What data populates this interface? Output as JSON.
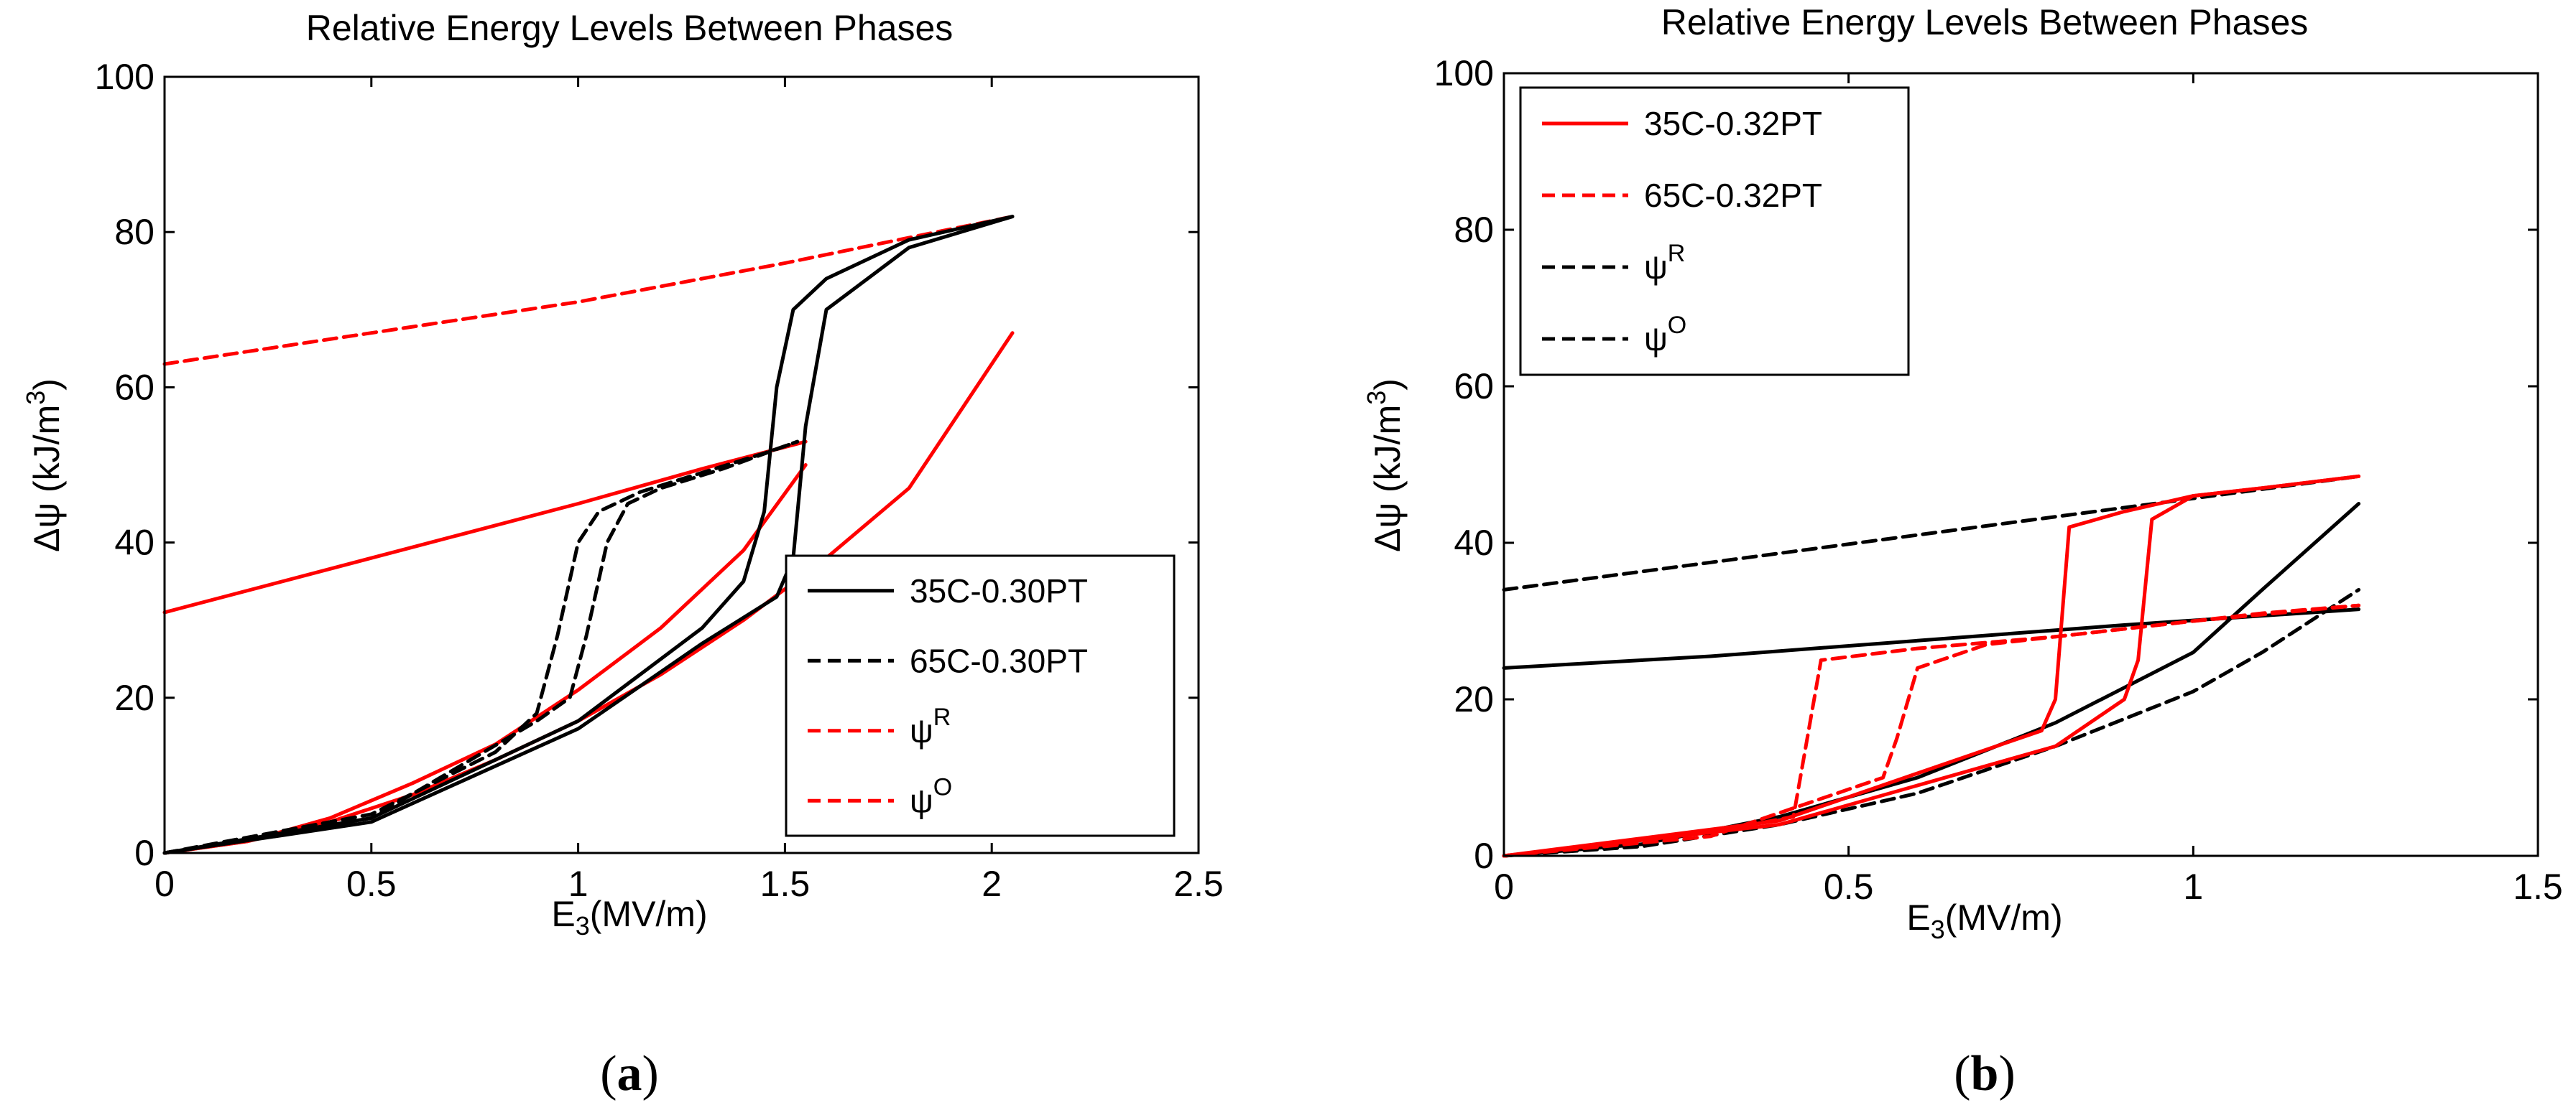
{
  "chart_data": [
    {
      "type": "line",
      "title": "Relative Energy Levels Between Phases",
      "xlabel_main": "E",
      "xlabel_sub": "3",
      "xlabel_rest": "(MV/m)",
      "ylabel_main": "Δψ  (kJ/m",
      "ylabel_sup": "3",
      "ylabel_end": ")",
      "xlim": [
        0,
        2.5
      ],
      "ylim": [
        0,
        100
      ],
      "xticks": [
        "0",
        "0.5",
        "1",
        "1.5",
        "2",
        "2.5"
      ],
      "yticks": [
        "0",
        "20",
        "40",
        "60",
        "80",
        "100"
      ],
      "caption_open": "(",
      "caption_letter": "a",
      "caption_close": ")",
      "legend_position": "bottom-right",
      "legend": [
        {
          "label": "35C-0.30PT",
          "color": "#000000",
          "dash": "solid"
        },
        {
          "label": "65C-0.30PT",
          "color": "#000000",
          "dash": "dashed"
        },
        {
          "label": "ψ",
          "sup": "R",
          "color": "#ff0000",
          "dash": "dashed"
        },
        {
          "label": "ψ",
          "sup": "O",
          "color": "#ff0000",
          "dash": "dashed"
        }
      ],
      "series": [
        {
          "color": "#ff0000",
          "dash": "dashed",
          "x": [
            0,
            0.5,
            1.0,
            1.5,
            2.05
          ],
          "y": [
            63,
            67,
            71,
            76,
            82
          ]
        },
        {
          "color": "#ff0000",
          "dash": "solid",
          "x": [
            0,
            0.5,
            1.0,
            1.3,
            1.55
          ],
          "y": [
            31,
            38,
            45,
            49.5,
            53
          ]
        },
        {
          "color": "#ff0000",
          "dash": "solid",
          "x": [
            0,
            0.2,
            0.4,
            0.6,
            0.8,
            1.0,
            1.2,
            1.4,
            1.6,
            1.8,
            2.05
          ],
          "y": [
            0,
            1.5,
            4,
            7.5,
            12,
            17,
            23,
            30,
            38,
            47,
            67
          ]
        },
        {
          "color": "#ff0000",
          "dash": "solid",
          "x": [
            0,
            0.2,
            0.4,
            0.6,
            0.8,
            1.0,
            1.2,
            1.4,
            1.55
          ],
          "y": [
            0,
            1.5,
            4.5,
            9,
            14,
            21,
            29,
            39,
            50
          ]
        },
        {
          "color": "#000000",
          "dash": "solid",
          "x": [
            0,
            0.5,
            1.0,
            1.3,
            1.4,
            1.45,
            1.48,
            1.52,
            1.6,
            1.8,
            2.05
          ],
          "y": [
            0,
            4.5,
            17,
            29,
            35,
            44,
            60,
            70,
            74,
            79,
            82
          ]
        },
        {
          "color": "#000000",
          "dash": "solid",
          "x": [
            0,
            0.5,
            1.0,
            1.3,
            1.48,
            1.52,
            1.55,
            1.6,
            1.8,
            2.05
          ],
          "y": [
            0,
            4,
            16,
            27,
            33,
            38,
            55,
            70,
            78,
            82
          ]
        },
        {
          "color": "#000000",
          "dash": "dashed",
          "x": [
            0,
            0.5,
            0.8,
            0.9,
            0.95,
            1.0,
            1.05,
            1.15,
            1.3,
            1.45,
            1.53
          ],
          "y": [
            0,
            5,
            13,
            18,
            28,
            40,
            44,
            46.5,
            49,
            51.5,
            53
          ]
        },
        {
          "color": "#000000",
          "dash": "dashed",
          "x": [
            0,
            0.5,
            0.9,
            0.98,
            1.02,
            1.07,
            1.12,
            1.2,
            1.35,
            1.53
          ],
          "y": [
            0,
            4.5,
            17,
            20,
            28,
            40,
            45,
            47,
            49.5,
            53
          ]
        }
      ]
    },
    {
      "type": "line",
      "title": "Relative Energy Levels Between Phases",
      "xlabel_main": "E",
      "xlabel_sub": "3",
      "xlabel_rest": "(MV/m)",
      "ylabel_main": "Δψ  (kJ/m",
      "ylabel_sup": "3",
      "ylabel_end": ")",
      "xlim": [
        0,
        1.5
      ],
      "ylim": [
        0,
        100
      ],
      "xticks": [
        "0",
        "0.5",
        "1",
        "1.5"
      ],
      "yticks": [
        "0",
        "20",
        "40",
        "60",
        "80",
        "100"
      ],
      "caption_open": "(",
      "caption_letter": "b",
      "caption_close": ")",
      "legend_position": "top-left",
      "legend": [
        {
          "label": "35C-0.32PT",
          "color": "#ff0000",
          "dash": "solid"
        },
        {
          "label": "65C-0.32PT",
          "color": "#ff0000",
          "dash": "dashed"
        },
        {
          "label": "ψ",
          "sup": "R",
          "color": "#000000",
          "dash": "dashed"
        },
        {
          "label": "ψ",
          "sup": "O",
          "color": "#000000",
          "dash": "dashed"
        }
      ],
      "series": [
        {
          "color": "#000000",
          "dash": "dashed",
          "x": [
            0,
            0.3,
            0.6,
            0.9,
            1.24
          ],
          "y": [
            34,
            37.5,
            41,
            44.5,
            48.5
          ]
        },
        {
          "color": "#000000",
          "dash": "solid",
          "x": [
            0,
            0.3,
            0.6,
            0.9,
            1.24
          ],
          "y": [
            24,
            25.5,
            27.5,
            29.5,
            31.5
          ]
        },
        {
          "color": "#000000",
          "dash": "solid",
          "x": [
            0,
            0.2,
            0.4,
            0.6,
            0.8,
            1.0,
            1.1,
            1.24
          ],
          "y": [
            0,
            1.5,
            5,
            10,
            17,
            26,
            34,
            45
          ]
        },
        {
          "color": "#000000",
          "dash": "dashed",
          "x": [
            0,
            0.2,
            0.4,
            0.6,
            0.8,
            1.0,
            1.1,
            1.24
          ],
          "y": [
            0,
            1.2,
            4,
            8,
            14,
            21,
            26,
            34
          ]
        },
        {
          "color": "#ff0000",
          "dash": "solid",
          "x": [
            0,
            0.4,
            0.78,
            0.8,
            0.82,
            0.9,
            1.0,
            1.1,
            1.24
          ],
          "y": [
            0,
            4.5,
            16,
            20,
            42,
            44,
            46,
            47,
            48.5
          ]
        },
        {
          "color": "#ff0000",
          "dash": "solid",
          "x": [
            0,
            0.4,
            0.8,
            0.9,
            0.92,
            0.94,
            1.0,
            1.1,
            1.24
          ],
          "y": [
            0,
            4,
            14,
            20,
            25,
            43,
            46,
            47,
            48.5
          ]
        },
        {
          "color": "#ff0000",
          "dash": "dashed",
          "x": [
            0,
            0.3,
            0.42,
            0.44,
            0.46,
            0.6,
            0.8,
            1.0,
            1.24
          ],
          "y": [
            0,
            3,
            5,
            15,
            25,
            26.5,
            28,
            30,
            32
          ]
        },
        {
          "color": "#ff0000",
          "dash": "dashed",
          "x": [
            0,
            0.3,
            0.55,
            0.57,
            0.6,
            0.7,
            0.9,
            1.1,
            1.24
          ],
          "y": [
            0,
            2.5,
            10,
            15,
            24,
            27,
            29,
            31,
            32
          ]
        }
      ]
    }
  ]
}
